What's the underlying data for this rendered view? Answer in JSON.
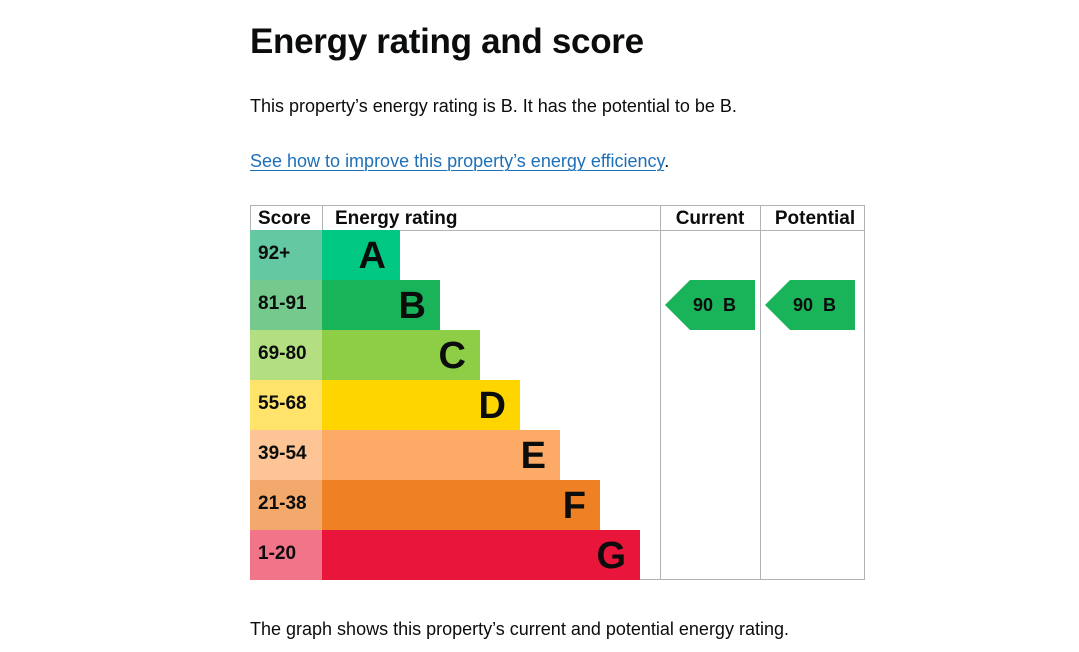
{
  "heading": "Energy rating and score",
  "summary": "This property’s energy rating is B. It has the potential to be B.",
  "improve_link": {
    "text": "See how to improve this property’s energy efficiency",
    "suffix": "."
  },
  "caption": "The graph shows this property’s current and potential energy rating.",
  "chart_data": {
    "type": "bar",
    "columns": {
      "score": "Score",
      "rating": "Energy rating",
      "current": "Current",
      "potential": "Potential"
    },
    "bands": [
      {
        "band": "A",
        "score": "92+",
        "color": "#00c781",
        "score_bg": "#64c8a2"
      },
      {
        "band": "B",
        "score": "81-91",
        "color": "#19b459",
        "score_bg": "#75c98d"
      },
      {
        "band": "C",
        "score": "69-80",
        "color": "#8dce46",
        "score_bg": "#b3df82"
      },
      {
        "band": "D",
        "score": "55-68",
        "color": "#ffd500",
        "score_bg": "#ffe36a"
      },
      {
        "band": "E",
        "score": "39-54",
        "color": "#fcaa65",
        "score_bg": "#fdc496"
      },
      {
        "band": "F",
        "score": "21-38",
        "color": "#ef8023",
        "score_bg": "#f4a96c"
      },
      {
        "band": "G",
        "score": "1-20",
        "color": "#e9153b",
        "score_bg": "#f17489"
      }
    ],
    "current": {
      "score": 90,
      "band": "B",
      "color": "#19b459"
    },
    "potential": {
      "score": 90,
      "band": "B",
      "color": "#19b459"
    }
  }
}
